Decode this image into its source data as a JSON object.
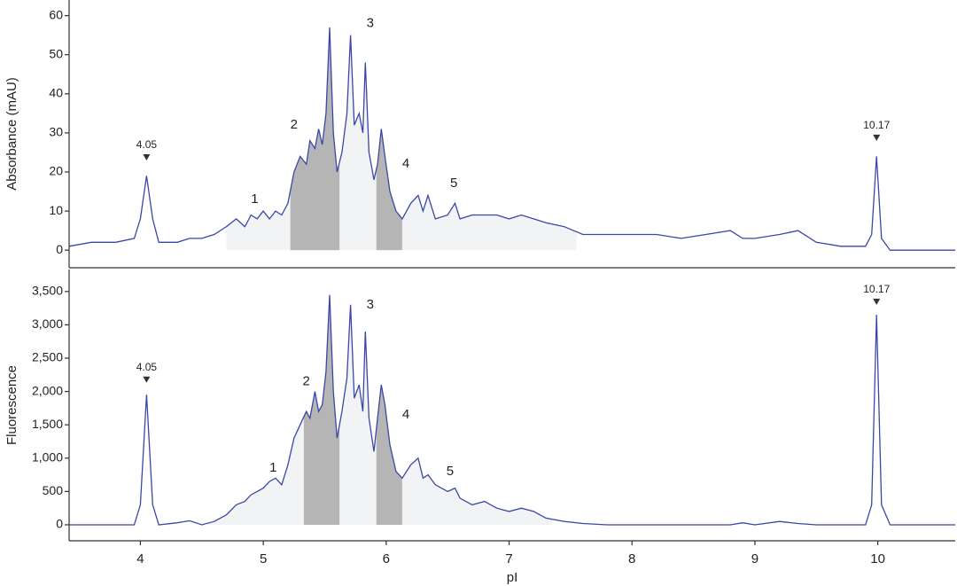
{
  "chart_data": [
    {
      "type": "line",
      "ylabel": "Absorbance (mAU)",
      "color": "#3a47a8",
      "x": [
        3.42,
        3.6,
        3.8,
        3.95,
        4.0,
        4.05,
        4.1,
        4.15,
        4.3,
        4.4,
        4.5,
        4.6,
        4.7,
        4.78,
        4.85,
        4.9,
        4.95,
        5.0,
        5.05,
        5.1,
        5.15,
        5.2,
        5.25,
        5.3,
        5.35,
        5.38,
        5.42,
        5.45,
        5.48,
        5.51,
        5.54,
        5.57,
        5.6,
        5.64,
        5.68,
        5.71,
        5.74,
        5.78,
        5.81,
        5.83,
        5.86,
        5.9,
        5.93,
        5.96,
        5.99,
        6.03,
        6.08,
        6.13,
        6.2,
        6.26,
        6.3,
        6.34,
        6.4,
        6.5,
        6.56,
        6.6,
        6.7,
        6.8,
        6.9,
        7.0,
        7.1,
        7.2,
        7.3,
        7.45,
        7.6,
        7.8,
        8.0,
        8.2,
        8.4,
        8.6,
        8.8,
        8.9,
        9.0,
        9.2,
        9.35,
        9.5,
        9.7,
        9.9,
        9.95,
        9.99,
        10.03,
        10.1,
        10.3,
        10.63
      ],
      "values": [
        1,
        2,
        2,
        3,
        8,
        19,
        8,
        2,
        2,
        3,
        3,
        4,
        6,
        8,
        6,
        9,
        8,
        10,
        8,
        10,
        9,
        12,
        20,
        24,
        22,
        28,
        26,
        31,
        27,
        35,
        57,
        30,
        20,
        25,
        35,
        55,
        32,
        35,
        30,
        48,
        25,
        18,
        22,
        31,
        24,
        15,
        10,
        8,
        12,
        14,
        10,
        14,
        8,
        9,
        12,
        8,
        9,
        9,
        9,
        8,
        9,
        8,
        7,
        6,
        4,
        4,
        4,
        4,
        3,
        4,
        5,
        3,
        3,
        4,
        5,
        2,
        1,
        1,
        4,
        24,
        3,
        0,
        0,
        0
      ],
      "xlim": [
        3.42,
        10.63
      ],
      "ylim": [
        -4.5,
        64
      ],
      "yticks": [
        0,
        10,
        20,
        30,
        40,
        50,
        60
      ],
      "regions": [
        {
          "xmin": 4.7,
          "xmax": 7.55,
          "color": "#f1f3f5"
        },
        {
          "xmin": 5.22,
          "xmax": 5.62,
          "color": "#b5b5b5"
        },
        {
          "xmin": 5.92,
          "xmax": 6.13,
          "color": "#b5b5b5"
        }
      ],
      "annotations": [
        {
          "text": "1",
          "x": 4.93,
          "y": 13
        },
        {
          "text": "2",
          "x": 5.25,
          "y": 32
        },
        {
          "text": "3",
          "x": 5.87,
          "y": 58
        },
        {
          "text": "4",
          "x": 6.16,
          "y": 22
        },
        {
          "text": "5",
          "x": 6.55,
          "y": 17
        }
      ],
      "markers": [
        {
          "text": "4.05",
          "x": 4.05,
          "y": 25
        },
        {
          "text": "10.17",
          "x": 9.99,
          "y": 30
        }
      ]
    },
    {
      "type": "line",
      "ylabel": "Fluorescence",
      "xlabel": "pI",
      "color": "#3a47a8",
      "x": [
        3.42,
        3.6,
        3.8,
        3.95,
        4.0,
        4.05,
        4.1,
        4.15,
        4.3,
        4.4,
        4.5,
        4.6,
        4.7,
        4.78,
        4.85,
        4.9,
        4.95,
        5.0,
        5.05,
        5.1,
        5.15,
        5.2,
        5.25,
        5.3,
        5.35,
        5.38,
        5.42,
        5.45,
        5.48,
        5.51,
        5.54,
        5.57,
        5.6,
        5.64,
        5.68,
        5.71,
        5.74,
        5.78,
        5.81,
        5.83,
        5.86,
        5.9,
        5.93,
        5.96,
        5.99,
        6.03,
        6.08,
        6.13,
        6.2,
        6.26,
        6.3,
        6.34,
        6.4,
        6.5,
        6.56,
        6.6,
        6.7,
        6.8,
        6.9,
        7.0,
        7.1,
        7.2,
        7.3,
        7.45,
        7.6,
        7.8,
        8.0,
        8.2,
        8.4,
        8.6,
        8.8,
        8.9,
        9.0,
        9.2,
        9.35,
        9.5,
        9.7,
        9.9,
        9.95,
        9.99,
        10.03,
        10.1,
        10.3,
        10.63
      ],
      "values": [
        0,
        0,
        0,
        0,
        300,
        1950,
        300,
        0,
        30,
        60,
        0,
        50,
        150,
        300,
        350,
        450,
        500,
        550,
        650,
        700,
        600,
        900,
        1300,
        1500,
        1700,
        1600,
        2000,
        1700,
        1800,
        2300,
        3450,
        2000,
        1300,
        1700,
        2200,
        3300,
        1900,
        2100,
        1700,
        2900,
        1600,
        1100,
        1600,
        2100,
        1800,
        1200,
        800,
        700,
        900,
        1000,
        700,
        750,
        600,
        500,
        550,
        400,
        300,
        350,
        250,
        200,
        250,
        200,
        100,
        50,
        20,
        0,
        0,
        0,
        0,
        0,
        0,
        30,
        0,
        50,
        20,
        0,
        0,
        0,
        300,
        3150,
        300,
        0,
        0,
        0
      ],
      "xlim": [
        3.42,
        10.63
      ],
      "ylim": [
        -240,
        3830
      ],
      "xticks": [
        4,
        5,
        6,
        7,
        8,
        9,
        10
      ],
      "yticks": [
        0,
        500,
        {
          "value": 1000,
          "label": "1,000"
        },
        {
          "value": 1500,
          "label": "1,500"
        },
        {
          "value": 2000,
          "label": "2,000"
        },
        {
          "value": 2500,
          "label": "2,500"
        },
        {
          "value": 3000,
          "label": "3,000"
        },
        {
          "value": 3500,
          "label": "3,500"
        }
      ],
      "regions": [
        {
          "xmin": 4.55,
          "xmax": 7.35,
          "color": "#f1f3f5"
        },
        {
          "xmin": 5.33,
          "xmax": 5.62,
          "color": "#b5b5b5"
        },
        {
          "xmin": 5.92,
          "xmax": 6.13,
          "color": "#b5b5b5"
        }
      ],
      "annotations": [
        {
          "text": "1",
          "x": 5.08,
          "y": 850
        },
        {
          "text": "2",
          "x": 5.35,
          "y": 2150
        },
        {
          "text": "3",
          "x": 5.87,
          "y": 3300
        },
        {
          "text": "4",
          "x": 6.16,
          "y": 1650
        },
        {
          "text": "5",
          "x": 6.52,
          "y": 800
        }
      ],
      "markers": [
        {
          "text": "4.05",
          "x": 4.05,
          "y": 2250
        },
        {
          "text": "10.17",
          "x": 9.99,
          "y": 3420
        }
      ]
    }
  ]
}
